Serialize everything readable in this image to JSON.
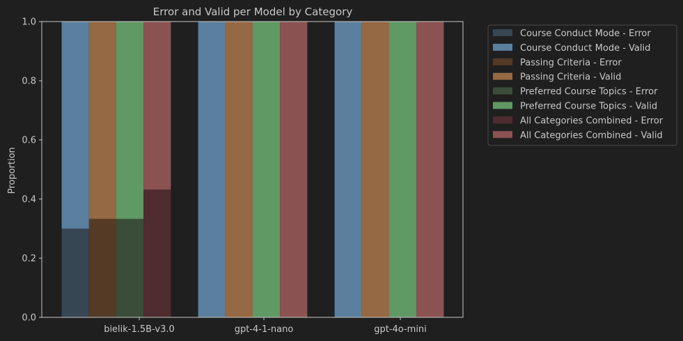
{
  "chart_data": {
    "type": "bar",
    "stacked": true,
    "title": "Error and Valid per Model by Category",
    "xlabel": "",
    "ylabel": "Proportion",
    "ylim": [
      0,
      1.0
    ],
    "yticks": [
      "0.0",
      "0.2",
      "0.4",
      "0.6",
      "0.8",
      "1.0"
    ],
    "categories": [
      "bielik-1.5B-v3.0",
      "gpt-4-1-nano",
      "gpt-4o-mini"
    ],
    "groups": [
      {
        "name": "Course Conduct Mode",
        "error_label": "Course Conduct Mode - Error",
        "valid_label": "Course Conduct Mode - Valid",
        "error_color": "#374653",
        "valid_color": "#5b809f",
        "error": [
          0.3,
          0.0,
          0.0
        ],
        "valid": [
          0.7,
          1.0,
          1.0
        ]
      },
      {
        "name": "Passing Criteria",
        "error_label": "Passing Criteria - Error",
        "valid_label": "Passing Criteria - Valid",
        "error_color": "#553a25",
        "valid_color": "#956943",
        "error": [
          0.333,
          0.0,
          0.0
        ],
        "valid": [
          0.667,
          1.0,
          1.0
        ]
      },
      {
        "name": "Preferred Course Topics",
        "error_label": "Preferred Course Topics - Error",
        "valid_label": "Preferred Course Topics - Valid",
        "error_color": "#3a4d38",
        "valid_color": "#5f9963",
        "error": [
          0.333,
          0.0,
          0.0
        ],
        "valid": [
          0.667,
          1.0,
          1.0
        ]
      },
      {
        "name": "All Categories Combined",
        "error_label": "All Categories Combined - Error",
        "valid_label": "All Categories Combined - Valid",
        "error_color": "#4e2c2f",
        "valid_color": "#8b5252",
        "error": [
          0.432,
          0.0,
          0.0
        ],
        "valid": [
          0.568,
          1.0,
          1.0
        ]
      }
    ],
    "legend_placement": "outside-right",
    "grid": false,
    "background": "#1f1f1f",
    "axis_color": "#c8c8c8"
  }
}
